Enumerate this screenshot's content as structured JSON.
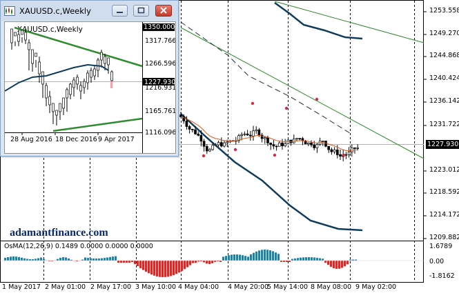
{
  "main_chart": {
    "price_axis": [
      "1253.558",
      "1249.270",
      "1244.868",
      "1240.424",
      "1236.142",
      "1231.722",
      "1227.930",
      "1223.012",
      "1218.592",
      "1214.172",
      "1209.882"
    ],
    "current_price": "1227.930",
    "time_axis": [
      "1 May 2017",
      "2 May 01:00",
      "2 May 17:00",
      "3 May 10:00",
      "4 May 04:00",
      "4 May 20:00",
      "5 May 14:00",
      "8 May 08:00",
      "9 May 02:00"
    ],
    "watermark": "adamantfinance.com",
    "osma": {
      "title": "OsMA(12,26,9) 0.1489 0.0000 0.0000 0.0000",
      "axis": [
        "1.6789",
        "0.00",
        "-1.8162"
      ]
    },
    "colors": {
      "bull_candle": "#ffffff",
      "bear_candle": "#000000",
      "ma_line": "#0f3b5c",
      "trend_line": "#2e8b2e",
      "ema_line": "#e05a1a",
      "fractal": "#d42a4a",
      "osma_positive": "#2a7d9c",
      "osma_negative": "#d62a2a"
    }
  },
  "inset": {
    "title": "XAUUSD.c,Weekly",
    "chart_label": "XAUUSD.c,Weekly",
    "price_axis": [
      "1350.000",
      "1317.766",
      "1266.596",
      "1216.931",
      "1165.761",
      "1116.096"
    ],
    "current_price": "1227.930",
    "time_axis": [
      "28 Aug 2016",
      "18 Dec 2016",
      "9 Apr 2017"
    ],
    "icons": [
      "chart-icon",
      "minimize-icon",
      "restore-icon",
      "close-icon"
    ]
  }
}
